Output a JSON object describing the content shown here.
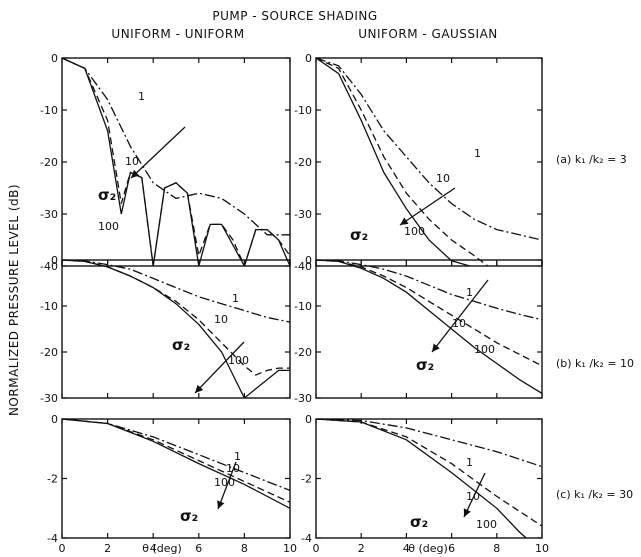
{
  "figure": {
    "main_title": "PUMP - SOURCE SHADING",
    "col_titles": [
      "UNIFORM - UNIFORM",
      "UNIFORM - GAUSSIAN"
    ],
    "ylabel": "NORMALIZED PRESSURE LEVEL (dB)",
    "xlabel": "θ (deg)",
    "row_labels": [
      "(a) k₁ /k₂ = 3",
      "(b) k₁ /k₂ = 10",
      "(c) k₁ /k₂ = 30"
    ],
    "sigma_label": "σ₂",
    "curve_labels": [
      "1",
      "10",
      "100"
    ],
    "x_ticks": [
      "0",
      "2",
      "4",
      "6",
      "8",
      "10"
    ],
    "row_yticks": [
      [
        "0",
        "-10",
        "-20",
        "-30",
        "-40"
      ],
      [
        "0",
        "-10",
        "-20",
        "-30"
      ],
      [
        "0",
        "-2",
        "-4"
      ]
    ]
  },
  "chart_data": [
    {
      "type": "line",
      "panel": "(a) uniform-uniform",
      "xlim": [
        0,
        10
      ],
      "ylim": [
        -40,
        0
      ],
      "series": [
        {
          "name": "1",
          "x": [
            0,
            1,
            2,
            3,
            4,
            5,
            6,
            7,
            8,
            9,
            10
          ],
          "y": [
            0,
            -2,
            -8,
            -17,
            -24,
            -27,
            -26,
            -27,
            -30,
            -34,
            -34
          ]
        },
        {
          "name": "10",
          "x": [
            0,
            1,
            2,
            2.6,
            3,
            3.5,
            4,
            4.5,
            5,
            5.5,
            6,
            6.5,
            7,
            7.5,
            8,
            8.5,
            9,
            9.5,
            10
          ],
          "y": [
            0,
            -2,
            -12,
            -28,
            -22,
            -23,
            -40,
            -25,
            -24,
            -26,
            -38,
            -32,
            -32,
            -35,
            -40,
            -33,
            -33,
            -35,
            -38
          ]
        },
        {
          "name": "100",
          "x": [
            0,
            1,
            2,
            2.6,
            3,
            3.5,
            4,
            4.5,
            5,
            5.5,
            6,
            6.5,
            7,
            7.5,
            8,
            8.5,
            9,
            9.5,
            10
          ],
          "y": [
            0,
            -2,
            -14,
            -30,
            -22,
            -23,
            -40,
            -25,
            -24,
            -26,
            -40,
            -32,
            -32,
            -36,
            -40,
            -33,
            -33,
            -35,
            -40
          ]
        }
      ]
    },
    {
      "type": "line",
      "panel": "(a) uniform-gaussian",
      "xlim": [
        0,
        10
      ],
      "ylim": [
        -40,
        0
      ],
      "series": [
        {
          "name": "1",
          "x": [
            0,
            1,
            2,
            3,
            4,
            5,
            6,
            7,
            8,
            9,
            10
          ],
          "y": [
            0,
            -1.5,
            -7,
            -14,
            -19,
            -24,
            -28,
            -31,
            -33,
            -34,
            -35
          ]
        },
        {
          "name": "10",
          "x": [
            0,
            1,
            2,
            3,
            4,
            5,
            6,
            7,
            7.6
          ],
          "y": [
            0,
            -2,
            -10,
            -19,
            -26,
            -31,
            -35,
            -38,
            -40
          ]
        },
        {
          "name": "100",
          "x": [
            0,
            1,
            2,
            3,
            4,
            5,
            6,
            6.8
          ],
          "y": [
            0,
            -3,
            -12,
            -22,
            -29,
            -35,
            -39,
            -40
          ]
        }
      ]
    },
    {
      "type": "line",
      "panel": "(b) uniform-uniform",
      "xlim": [
        0,
        10
      ],
      "ylim": [
        -30,
        0
      ],
      "series": [
        {
          "name": "1",
          "x": [
            0,
            1,
            2,
            3,
            4,
            5,
            6,
            7,
            8,
            9,
            10
          ],
          "y": [
            0,
            -0.2,
            -1,
            -2,
            -4,
            -6,
            -8,
            -9.5,
            -11,
            -12.5,
            -13.5
          ]
        },
        {
          "name": "10",
          "x": [
            0,
            1,
            2,
            3,
            4,
            5,
            6,
            7,
            8,
            8.5,
            9,
            9.5,
            10
          ],
          "y": [
            0,
            -0.3,
            -1.5,
            -3.5,
            -6,
            -9,
            -13,
            -18,
            -23,
            -25,
            -24,
            -23.5,
            -23.5
          ]
        },
        {
          "name": "100",
          "x": [
            0,
            1,
            2,
            3,
            4,
            5,
            6,
            7,
            7.5,
            8,
            8.5,
            9,
            9.5,
            10
          ],
          "y": [
            0,
            -0.3,
            -1.5,
            -3.5,
            -6,
            -9.5,
            -14,
            -20,
            -25,
            -30,
            -28,
            -26,
            -24,
            -24
          ]
        }
      ]
    },
    {
      "type": "line",
      "panel": "(b) uniform-gaussian",
      "xlim": [
        0,
        10
      ],
      "ylim": [
        -30,
        0
      ],
      "series": [
        {
          "name": "1",
          "x": [
            0,
            1,
            2,
            3,
            4,
            5,
            6,
            7,
            8,
            9,
            10
          ],
          "y": [
            0,
            -0.2,
            -1,
            -2,
            -3.5,
            -5.5,
            -7.5,
            -9,
            -10.5,
            -11.8,
            -13
          ]
        },
        {
          "name": "10",
          "x": [
            0,
            1,
            2,
            3,
            4,
            5,
            6,
            7,
            8,
            9,
            10
          ],
          "y": [
            0,
            -0.3,
            -1.5,
            -3.5,
            -6,
            -9,
            -12,
            -15,
            -18,
            -20.5,
            -23
          ]
        },
        {
          "name": "100",
          "x": [
            0,
            1,
            2,
            3,
            4,
            5,
            6,
            7,
            8,
            9,
            10
          ],
          "y": [
            0,
            -0.3,
            -1.8,
            -4,
            -7,
            -11,
            -15,
            -19,
            -22.5,
            -26,
            -29
          ]
        }
      ]
    },
    {
      "type": "line",
      "panel": "(c) uniform-uniform",
      "xlim": [
        0,
        10
      ],
      "ylim": [
        -4,
        0
      ],
      "series": [
        {
          "name": "1",
          "x": [
            0,
            2,
            4,
            6,
            8,
            10
          ],
          "y": [
            0,
            -0.15,
            -0.6,
            -1.2,
            -1.8,
            -2.4
          ]
        },
        {
          "name": "10",
          "x": [
            0,
            2,
            4,
            6,
            8,
            10
          ],
          "y": [
            0,
            -0.15,
            -0.7,
            -1.4,
            -2.1,
            -2.8
          ]
        },
        {
          "name": "100",
          "x": [
            0,
            2,
            4,
            6,
            8,
            10
          ],
          "y": [
            0,
            -0.15,
            -0.75,
            -1.5,
            -2.2,
            -3.0
          ]
        }
      ]
    },
    {
      "type": "line",
      "panel": "(c) uniform-gaussian",
      "xlim": [
        0,
        10
      ],
      "ylim": [
        -4,
        0
      ],
      "series": [
        {
          "name": "1",
          "x": [
            0,
            2,
            4,
            6,
            8,
            10
          ],
          "y": [
            0,
            -0.05,
            -0.3,
            -0.7,
            -1.1,
            -1.6
          ]
        },
        {
          "name": "10",
          "x": [
            0,
            2,
            4,
            6,
            8,
            10
          ],
          "y": [
            0,
            -0.1,
            -0.6,
            -1.5,
            -2.6,
            -3.6
          ]
        },
        {
          "name": "100",
          "x": [
            0,
            2,
            4,
            6,
            8,
            9,
            9.3
          ],
          "y": [
            0,
            -0.1,
            -0.7,
            -1.8,
            -3.0,
            -3.8,
            -4.0
          ]
        }
      ]
    }
  ]
}
